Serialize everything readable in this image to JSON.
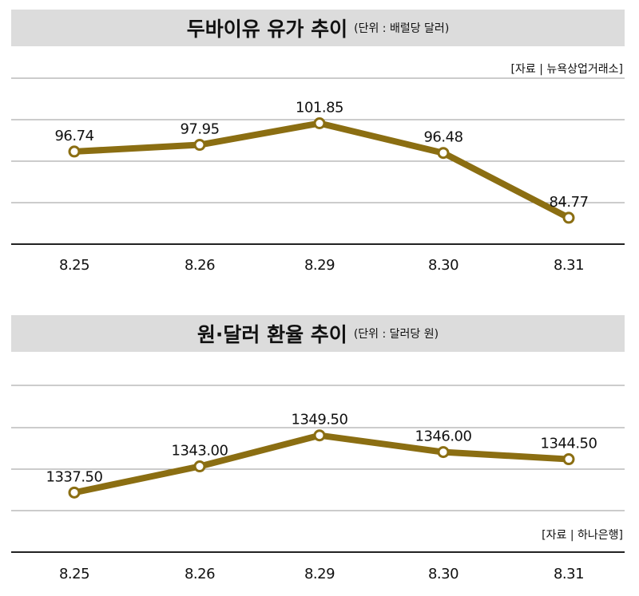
{
  "panels": {
    "oil": {
      "title": "두바이유 유가 추이",
      "unit": "(단위 : 배럴당 달러)",
      "source": "[자료 | 뉴욕상업거래소]"
    },
    "fx": {
      "title": "원·달러 환율 추이",
      "unit": "(단위 : 달러당 원)",
      "source": "[자료 | 하나은행]"
    }
  },
  "colors": {
    "line": "#8b6e12",
    "grid": "#9a9a9a",
    "title_bg": "#dcdcdc"
  },
  "chart_data": [
    {
      "type": "line",
      "title": "두바이유 유가 추이",
      "categories": [
        "8.25",
        "8.26",
        "8.29",
        "8.30",
        "8.31"
      ],
      "values": [
        96.74,
        97.95,
        101.85,
        96.48,
        84.77
      ],
      "labels": [
        "96.74",
        "97.95",
        "101.85",
        "96.48",
        "84.77"
      ],
      "ylim": [
        80,
        110
      ],
      "grid": true,
      "xlabel": "",
      "ylabel": ""
    },
    {
      "type": "line",
      "title": "원·달러 환율 추이",
      "categories": [
        "8.25",
        "8.26",
        "8.29",
        "8.30",
        "8.31"
      ],
      "values": [
        1337.5,
        1343.0,
        1349.5,
        1346.0,
        1344.5
      ],
      "labels": [
        "1337.50",
        "1343.00",
        "1349.50",
        "1346.00",
        "1344.50"
      ],
      "ylim": [
        1325,
        1360
      ],
      "grid": true,
      "xlabel": "",
      "ylabel": ""
    }
  ]
}
